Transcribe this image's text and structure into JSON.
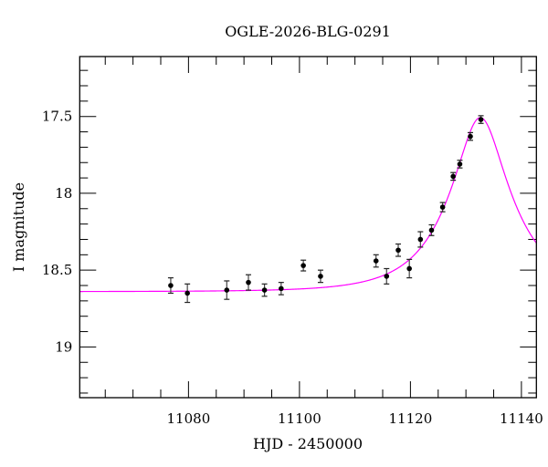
{
  "chart_data": {
    "type": "scatter",
    "title": "OGLE-2026-BLG-0291",
    "xlabel": "HJD - 2450000",
    "ylabel": "I magnitude",
    "xlim": [
      11060.4,
      11142.7
    ],
    "ylim": [
      17.11,
      19.33
    ],
    "y_inverted": true,
    "grid": false,
    "xticks": [
      11080,
      11100,
      11120,
      11140
    ],
    "xtick_labels": [
      "11080",
      "11100",
      "11120",
      "11140"
    ],
    "x_minor_step": 5,
    "yticks": [
      17.5,
      18,
      18.5,
      19
    ],
    "ytick_labels": [
      "17.5",
      "18",
      "18.5",
      "19"
    ],
    "y_minor_step": 0.1,
    "points": [
      {
        "x": 11076.8,
        "y": 18.6,
        "err": 0.05
      },
      {
        "x": 11079.8,
        "y": 18.65,
        "err": 0.06
      },
      {
        "x": 11086.9,
        "y": 18.63,
        "err": 0.06
      },
      {
        "x": 11090.8,
        "y": 18.58,
        "err": 0.05
      },
      {
        "x": 11093.7,
        "y": 18.63,
        "err": 0.04
      },
      {
        "x": 11096.7,
        "y": 18.62,
        "err": 0.04
      },
      {
        "x": 11100.7,
        "y": 18.47,
        "err": 0.035
      },
      {
        "x": 11103.8,
        "y": 18.54,
        "err": 0.04
      },
      {
        "x": 11113.8,
        "y": 18.44,
        "err": 0.04
      },
      {
        "x": 11115.7,
        "y": 18.54,
        "err": 0.05
      },
      {
        "x": 11117.8,
        "y": 18.37,
        "err": 0.04
      },
      {
        "x": 11119.8,
        "y": 18.49,
        "err": 0.06
      },
      {
        "x": 11121.8,
        "y": 18.3,
        "err": 0.05
      },
      {
        "x": 11123.8,
        "y": 18.24,
        "err": 0.035
      },
      {
        "x": 11125.8,
        "y": 18.09,
        "err": 0.03
      },
      {
        "x": 11127.7,
        "y": 17.89,
        "err": 0.025
      },
      {
        "x": 11128.9,
        "y": 17.81,
        "err": 0.025
      },
      {
        "x": 11130.8,
        "y": 17.63,
        "err": 0.025
      },
      {
        "x": 11132.7,
        "y": 17.52,
        "err": 0.025
      }
    ],
    "point_color": "#000000",
    "model": {
      "type": "point-lens microlensing fit",
      "t0": 11132.6,
      "u0": 0.37,
      "tE": 10.8,
      "baseline_mag": 18.64,
      "color": "#ff00ff"
    }
  }
}
